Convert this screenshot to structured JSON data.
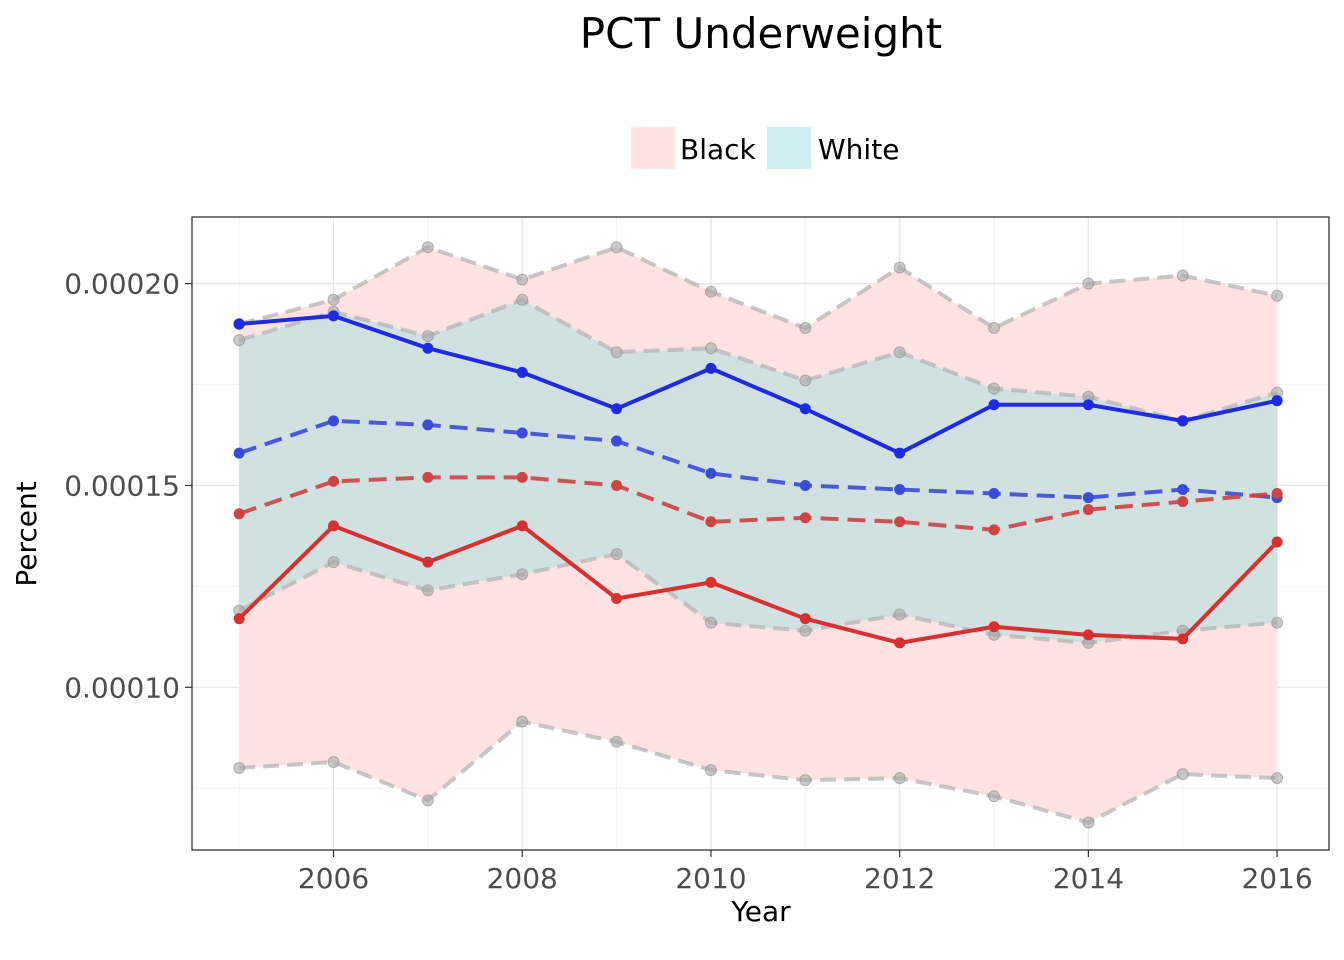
{
  "chart_data": {
    "type": "line",
    "title": "PCT Underweight",
    "xlabel": "Year",
    "ylabel": "Percent",
    "x": [
      2005,
      2006,
      2007,
      2008,
      2009,
      2010,
      2011,
      2012,
      2013,
      2014,
      2015,
      2016
    ],
    "xlim": [
      2004.5,
      2016.55
    ],
    "ylim": [
      5.97e-05,
      0.0002165
    ],
    "x_ticks": [
      2006,
      2008,
      2010,
      2012,
      2014,
      2016
    ],
    "y_ticks": [
      0.0001,
      0.00015,
      0.0002
    ],
    "x_tick_labels": [
      "2006",
      "2008",
      "2010",
      "2012",
      "2014",
      "2016"
    ],
    "y_tick_labels": [
      "0.00010",
      "0.00015",
      "0.00020"
    ],
    "grid": true,
    "legend_position": "top",
    "legend": [
      {
        "label": "Black",
        "color": "#FFE3E3"
      },
      {
        "label": "White",
        "color": "#CDEFF0"
      }
    ],
    "bands": [
      {
        "name": "Black",
        "color": "#FFE3E3",
        "upper": [
          0.00019,
          0.000196,
          0.000209,
          0.000201,
          0.000209,
          0.000198,
          0.000189,
          0.000204,
          0.000189,
          0.0002,
          0.000202,
          0.000197
        ],
        "lower": [
          8e-05,
          8.15e-05,
          7.2e-05,
          9.15e-05,
          8.65e-05,
          7.95e-05,
          7.7e-05,
          7.75e-05,
          7.3e-05,
          6.65e-05,
          7.85e-05,
          7.75e-05
        ]
      },
      {
        "name": "White",
        "color": "#B3DEE0",
        "upper": [
          0.000186,
          0.000193,
          0.000187,
          0.000196,
          0.000183,
          0.000184,
          0.000176,
          0.000183,
          0.000174,
          0.000172,
          0.000166,
          0.000173
        ],
        "lower": [
          0.000119,
          0.000131,
          0.000124,
          0.000128,
          0.000133,
          0.000116,
          0.000114,
          0.000118,
          0.000113,
          0.000111,
          0.000114,
          0.000116
        ]
      }
    ],
    "series": [
      {
        "values": [
          0.00019,
          0.000192,
          0.000184,
          0.000178,
          0.000169,
          0.000179,
          0.000169,
          0.000158,
          0.00017,
          0.00017,
          0.000166,
          0.000171
        ],
        "color": "#1F2BE0",
        "dash": false
      },
      {
        "values": [
          0.000158,
          0.000166,
          0.000165,
          0.000163,
          0.000161,
          0.000153,
          0.00015,
          0.000149,
          0.000148,
          0.000147,
          0.000149,
          0.000147
        ],
        "color": "#3A4BD8",
        "dash": true
      },
      {
        "values": [
          0.000143,
          0.000151,
          0.000152,
          0.000152,
          0.00015,
          0.000141,
          0.000142,
          0.000141,
          0.000139,
          0.000144,
          0.000146,
          0.000148
        ],
        "color": "#CC4444",
        "dash": true
      },
      {
        "values": [
          0.000117,
          0.00014,
          0.000131,
          0.00014,
          0.000122,
          0.000126,
          0.000117,
          0.000111,
          0.000115,
          0.000113,
          0.000112,
          0.000136
        ],
        "color": "#D63030",
        "dash": false
      }
    ]
  }
}
